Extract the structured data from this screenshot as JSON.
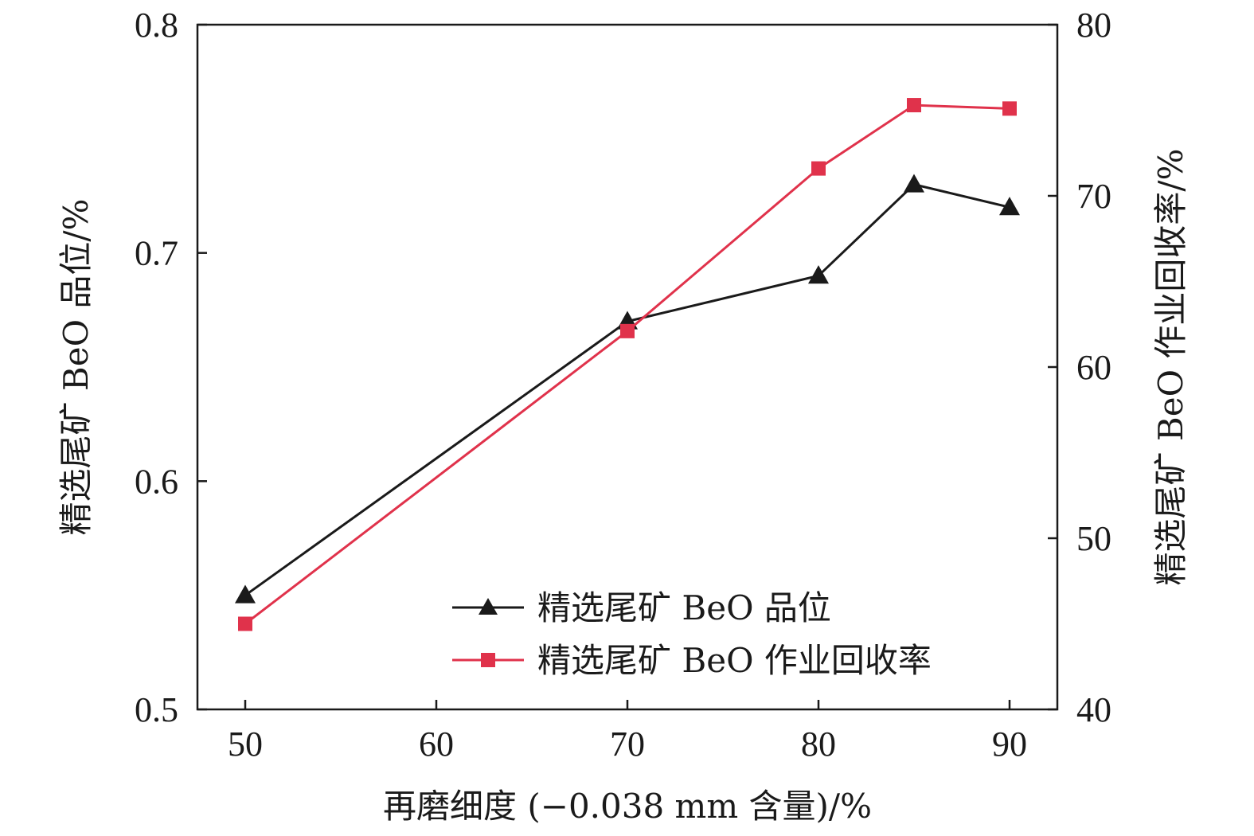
{
  "chart_data": {
    "type": "line",
    "x": [
      50,
      70,
      80,
      85,
      90
    ],
    "xlabel": "再磨细度 (−0.038 mm 含量)/%",
    "xticks": [
      "50",
      "60",
      "70",
      "80",
      "90"
    ],
    "xlim": [
      47.5,
      92.5
    ],
    "ylabel_left": "精选尾矿 BeO 品位/%",
    "ylabel_right": "精选尾矿 BeO 作业回收率/%",
    "ylim_left": [
      0.5,
      0.8
    ],
    "ylim_right": [
      40,
      80
    ],
    "yticks_left": [
      "0.5",
      "0.6",
      "0.7",
      "0.8"
    ],
    "yticks_right": [
      "40",
      "50",
      "60",
      "70",
      "80"
    ],
    "series": [
      {
        "name": "精选尾矿 BeO 品位",
        "axis": "left",
        "marker": "triangle",
        "color": "#1a1a1a",
        "values": [
          0.55,
          0.67,
          0.69,
          0.73,
          0.72
        ]
      },
      {
        "name": "精选尾矿 BeO 作业回收率",
        "axis": "right",
        "marker": "square",
        "color": "#e0324b",
        "values": [
          45.0,
          62.1,
          71.6,
          75.3,
          75.1
        ]
      }
    ],
    "legend_position": "bottom-right",
    "grid": false
  }
}
